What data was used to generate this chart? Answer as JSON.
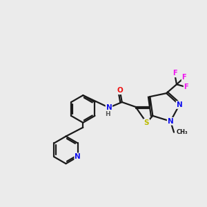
{
  "background_color": "#ebebeb",
  "bond_color": "#1a1a1a",
  "atom_colors": {
    "N": "#1010ee",
    "S": "#bbbb00",
    "O": "#ee1111",
    "F": "#ee11ee",
    "H": "#555555"
  },
  "lw": 1.6,
  "figsize": [
    3.0,
    3.0
  ],
  "dpi": 100
}
